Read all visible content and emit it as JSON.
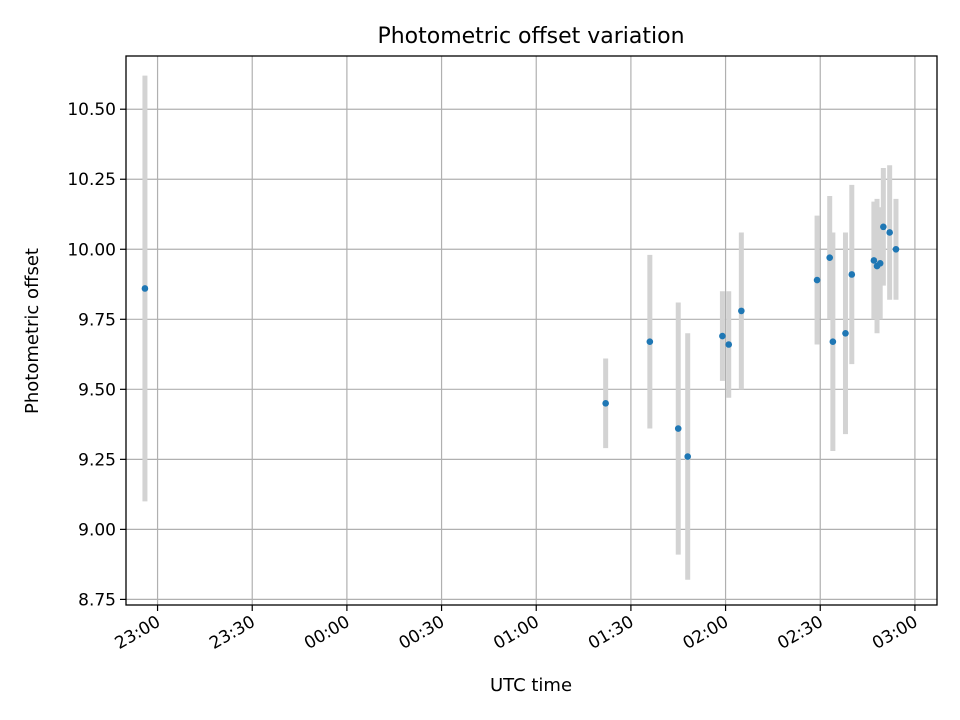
{
  "chart_data": {
    "type": "scatter",
    "title": "Photometric offset variation",
    "xlabel": "UTC time",
    "ylabel": "Photometric offset",
    "grid": true,
    "legend": "none",
    "x_axis_type": "time",
    "x_ticks": [
      "23:00",
      "23:30",
      "00:00",
      "00:30",
      "01:00",
      "01:30",
      "02:00",
      "02:30",
      "03:00"
    ],
    "y_ticks": [
      "8.75",
      "9.00",
      "9.25",
      "9.50",
      "9.75",
      "10.00",
      "10.25",
      "10.50"
    ],
    "ylim": [
      8.73,
      10.69
    ],
    "xlim": [
      "22:50",
      "03:07"
    ],
    "colors": {
      "point": "#1f77b4",
      "errorbar": "#d3d3d3",
      "grid": "#b0b0b0"
    },
    "series": [
      {
        "x": [
          "22:56",
          "01:22",
          "01:36",
          "01:45",
          "01:48",
          "01:59",
          "02:01",
          "02:05",
          "02:29",
          "02:33",
          "02:34",
          "02:38",
          "02:40",
          "02:47",
          "02:48",
          "02:49",
          "02:50",
          "02:52",
          "02:54"
        ],
        "y": [
          9.86,
          9.45,
          9.67,
          9.36,
          9.26,
          9.69,
          9.66,
          9.78,
          9.89,
          9.97,
          9.67,
          9.7,
          9.91,
          9.96,
          9.94,
          9.95,
          10.08,
          10.06,
          10.0
        ],
        "err": [
          0.76,
          0.16,
          0.31,
          0.45,
          0.44,
          0.16,
          0.19,
          0.28,
          0.23,
          0.22,
          0.39,
          0.36,
          0.32,
          0.21,
          0.24,
          0.2,
          0.21,
          0.24,
          0.18
        ]
      }
    ]
  }
}
